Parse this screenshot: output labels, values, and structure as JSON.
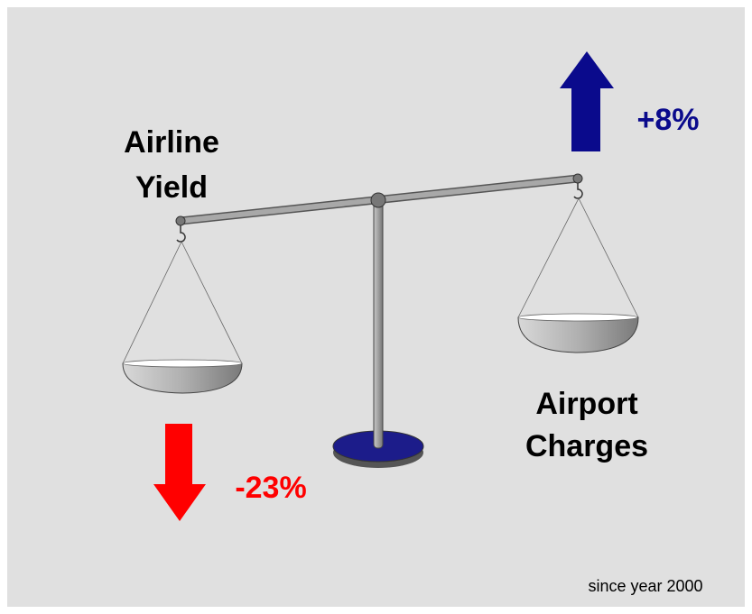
{
  "left": {
    "label_lines": [
      "Airline",
      "Yield"
    ],
    "change": "-23%"
  },
  "right": {
    "label_lines": [
      "Airport",
      "Charges"
    ],
    "change": "+8%"
  },
  "footnote": "since year 2000"
}
